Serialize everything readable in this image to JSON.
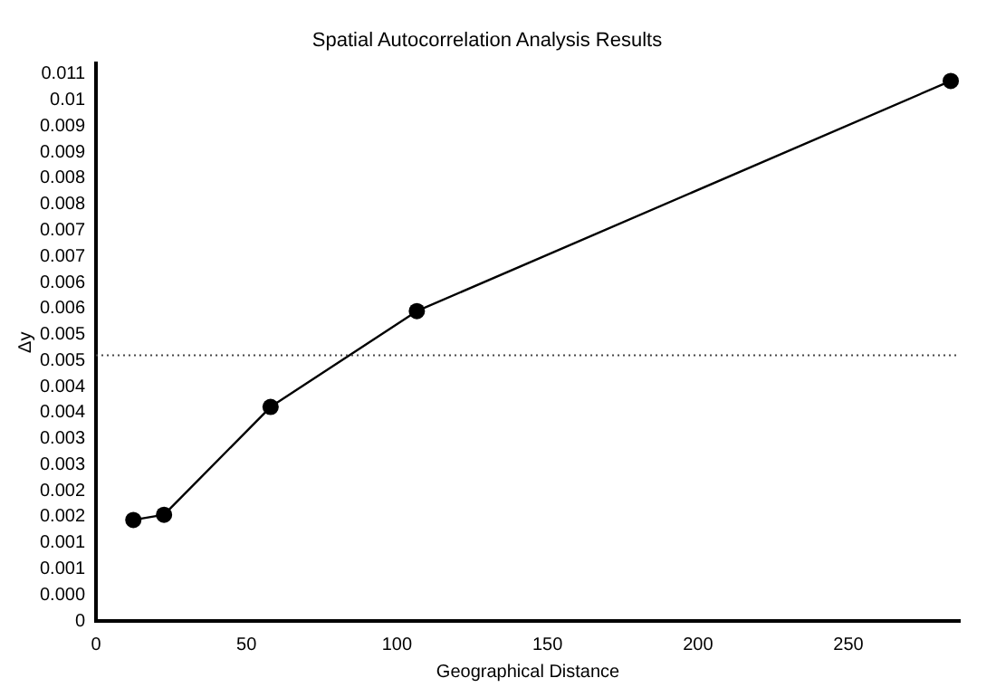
{
  "chart_data": {
    "type": "line",
    "title": "Spatial Autocorrelation Analysis Results",
    "xlabel": "Geographical Distance",
    "ylabel": "Δy",
    "x": [
      12.4,
      22.6,
      58,
      106.6,
      284
    ],
    "series": [
      {
        "color": "#000000",
        "values": [
          0.00194,
          0.00204,
          0.00411,
          0.00595,
          0.01037
        ]
      }
    ],
    "xlim": [
      0,
      287
    ],
    "xticks": [
      0,
      50,
      100,
      150,
      200,
      250
    ],
    "ylim": [
      0,
      0.0107
    ],
    "yticks": [
      0,
      {
        "value": 0.0005,
        "label": "0.000"
      },
      {
        "value": 0.001,
        "label": "0.001"
      },
      {
        "value": 0.0015,
        "label": "0.001"
      },
      {
        "value": 0.002,
        "label": "0.002"
      },
      {
        "value": 0.0025,
        "label": "0.002"
      },
      {
        "value": 0.003,
        "label": "0.003"
      },
      {
        "value": 0.0035,
        "label": "0.003"
      },
      {
        "value": 0.004,
        "label": "0.004"
      },
      {
        "value": 0.0045,
        "label": "0.004"
      },
      {
        "value": 0.005,
        "label": "0.005"
      },
      {
        "value": 0.0055,
        "label": "0.005"
      },
      {
        "value": 0.006,
        "label": "0.006"
      },
      {
        "value": 0.0065,
        "label": "0.006"
      },
      {
        "value": 0.007,
        "label": "0.007"
      },
      {
        "value": 0.0075,
        "label": "0.007"
      },
      {
        "value": 0.008,
        "label": "0.008"
      },
      {
        "value": 0.0085,
        "label": "0.008"
      },
      {
        "value": 0.009,
        "label": "0.009"
      },
      {
        "value": 0.0095,
        "label": "0.009"
      },
      {
        "value": 0.01,
        "label": "0.01"
      },
      {
        "value": 0.0105,
        "label": "0.011"
      }
    ],
    "ref_lines": [
      {
        "axis": "y",
        "value": 0.0051,
        "line_style": "dotted"
      }
    ],
    "grid": false,
    "legend": false,
    "marker": "circle",
    "line_style": "solid"
  }
}
